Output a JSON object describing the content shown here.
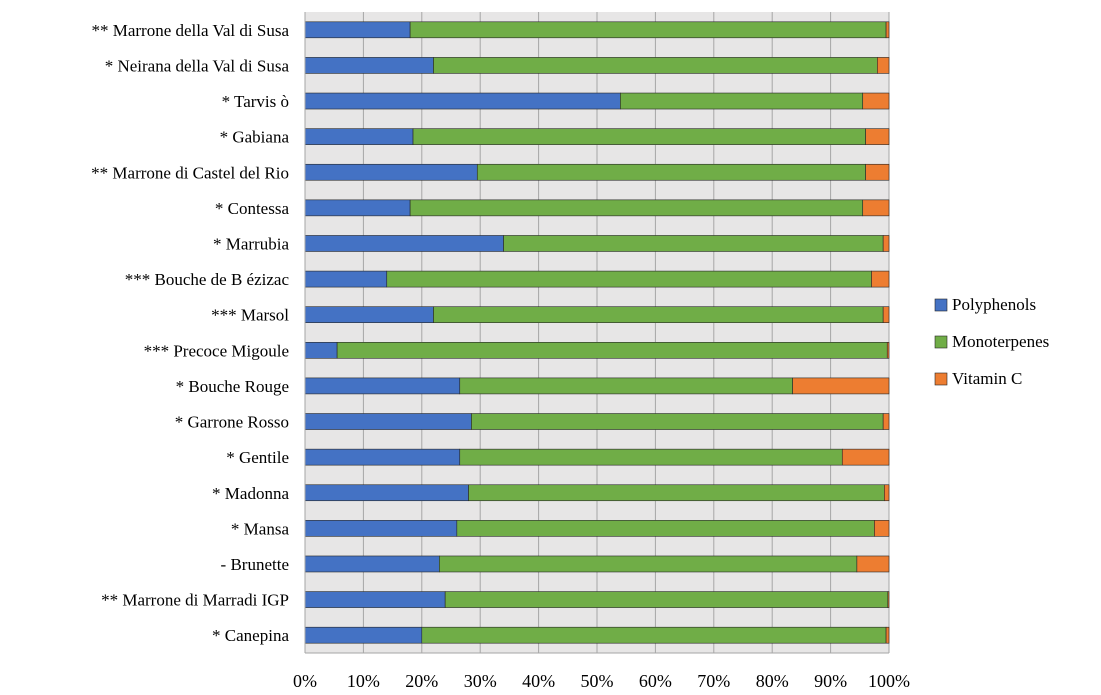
{
  "chart_data": {
    "type": "bar",
    "orientation": "horizontal",
    "stacked": "percent",
    "categories": [
      "** Marrone della Val di Susa",
      "* Neirana della Val di Susa",
      "* Tarvis ò",
      "* Gabiana",
      "** Marrone di Castel del Rio",
      "* Contessa",
      "* Marrubia",
      "*** Bouche de B ézizac",
      "*** Marsol",
      "*** Precoce Migoule",
      "* Bouche Rouge",
      "* Garrone Rosso",
      "* Gentile",
      "* Madonna",
      "* Mansa",
      "- Brunette",
      "** Marrone di Marradi IGP",
      "* Canepina"
    ],
    "series": [
      {
        "name": "Polyphenols",
        "color": "#4472C4",
        "values": [
          18,
          22,
          54,
          18.5,
          29.5,
          18,
          34,
          14,
          22,
          5.5,
          26.5,
          28.5,
          26.5,
          28,
          26,
          23,
          24,
          20
        ]
      },
      {
        "name": "Monoterpenes",
        "color": "#70AD47",
        "values": [
          81.5,
          76,
          41.5,
          77.5,
          66.5,
          77.5,
          65,
          83,
          77,
          94.2,
          57,
          70.5,
          65.5,
          71.2,
          71.5,
          71.5,
          75.8,
          79.5
        ]
      },
      {
        "name": "Vitamin C",
        "color": "#ED7D31",
        "values": [
          0.5,
          2,
          4.5,
          4,
          4,
          4.5,
          1,
          3,
          1,
          0.3,
          16.5,
          1,
          8,
          0.8,
          2.5,
          5.5,
          0.2,
          0.5
        ]
      }
    ],
    "xlim": [
      0,
      100
    ],
    "xticks": [
      "0%",
      "10%",
      "20%",
      "30%",
      "40%",
      "50%",
      "60%",
      "70%",
      "80%",
      "90%",
      "100%"
    ],
    "xtick_values": [
      0,
      10,
      20,
      30,
      40,
      50,
      60,
      70,
      80,
      90,
      100
    ],
    "grid": true,
    "legend_position": "right"
  }
}
